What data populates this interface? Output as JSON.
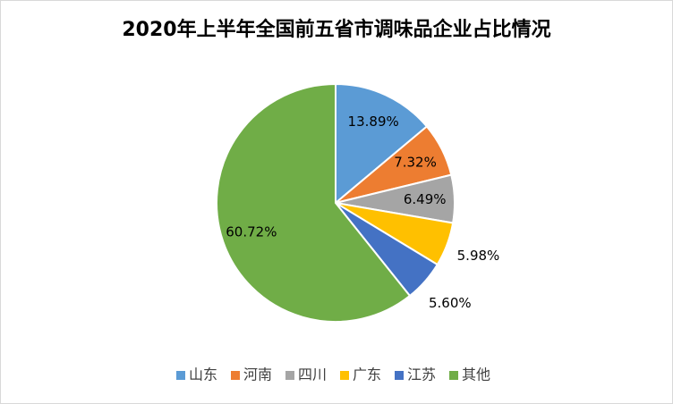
{
  "chart_data": {
    "type": "pie",
    "title": "2020年上半年全国前五省市调味品企业占比情况",
    "categories": [
      "山东",
      "河南",
      "四川",
      "广东",
      "江苏",
      "其他"
    ],
    "values": [
      13.89,
      7.32,
      6.49,
      5.98,
      5.6,
      60.72
    ],
    "value_labels": [
      "13.89%",
      "7.32%",
      "6.49%",
      "5.98%",
      "5.60%",
      "60.72%"
    ],
    "colors": [
      "#5b9bd5",
      "#ed7d31",
      "#a5a5a5",
      "#ffc000",
      "#4472c4",
      "#70ad47"
    ],
    "legend": "bottom"
  }
}
